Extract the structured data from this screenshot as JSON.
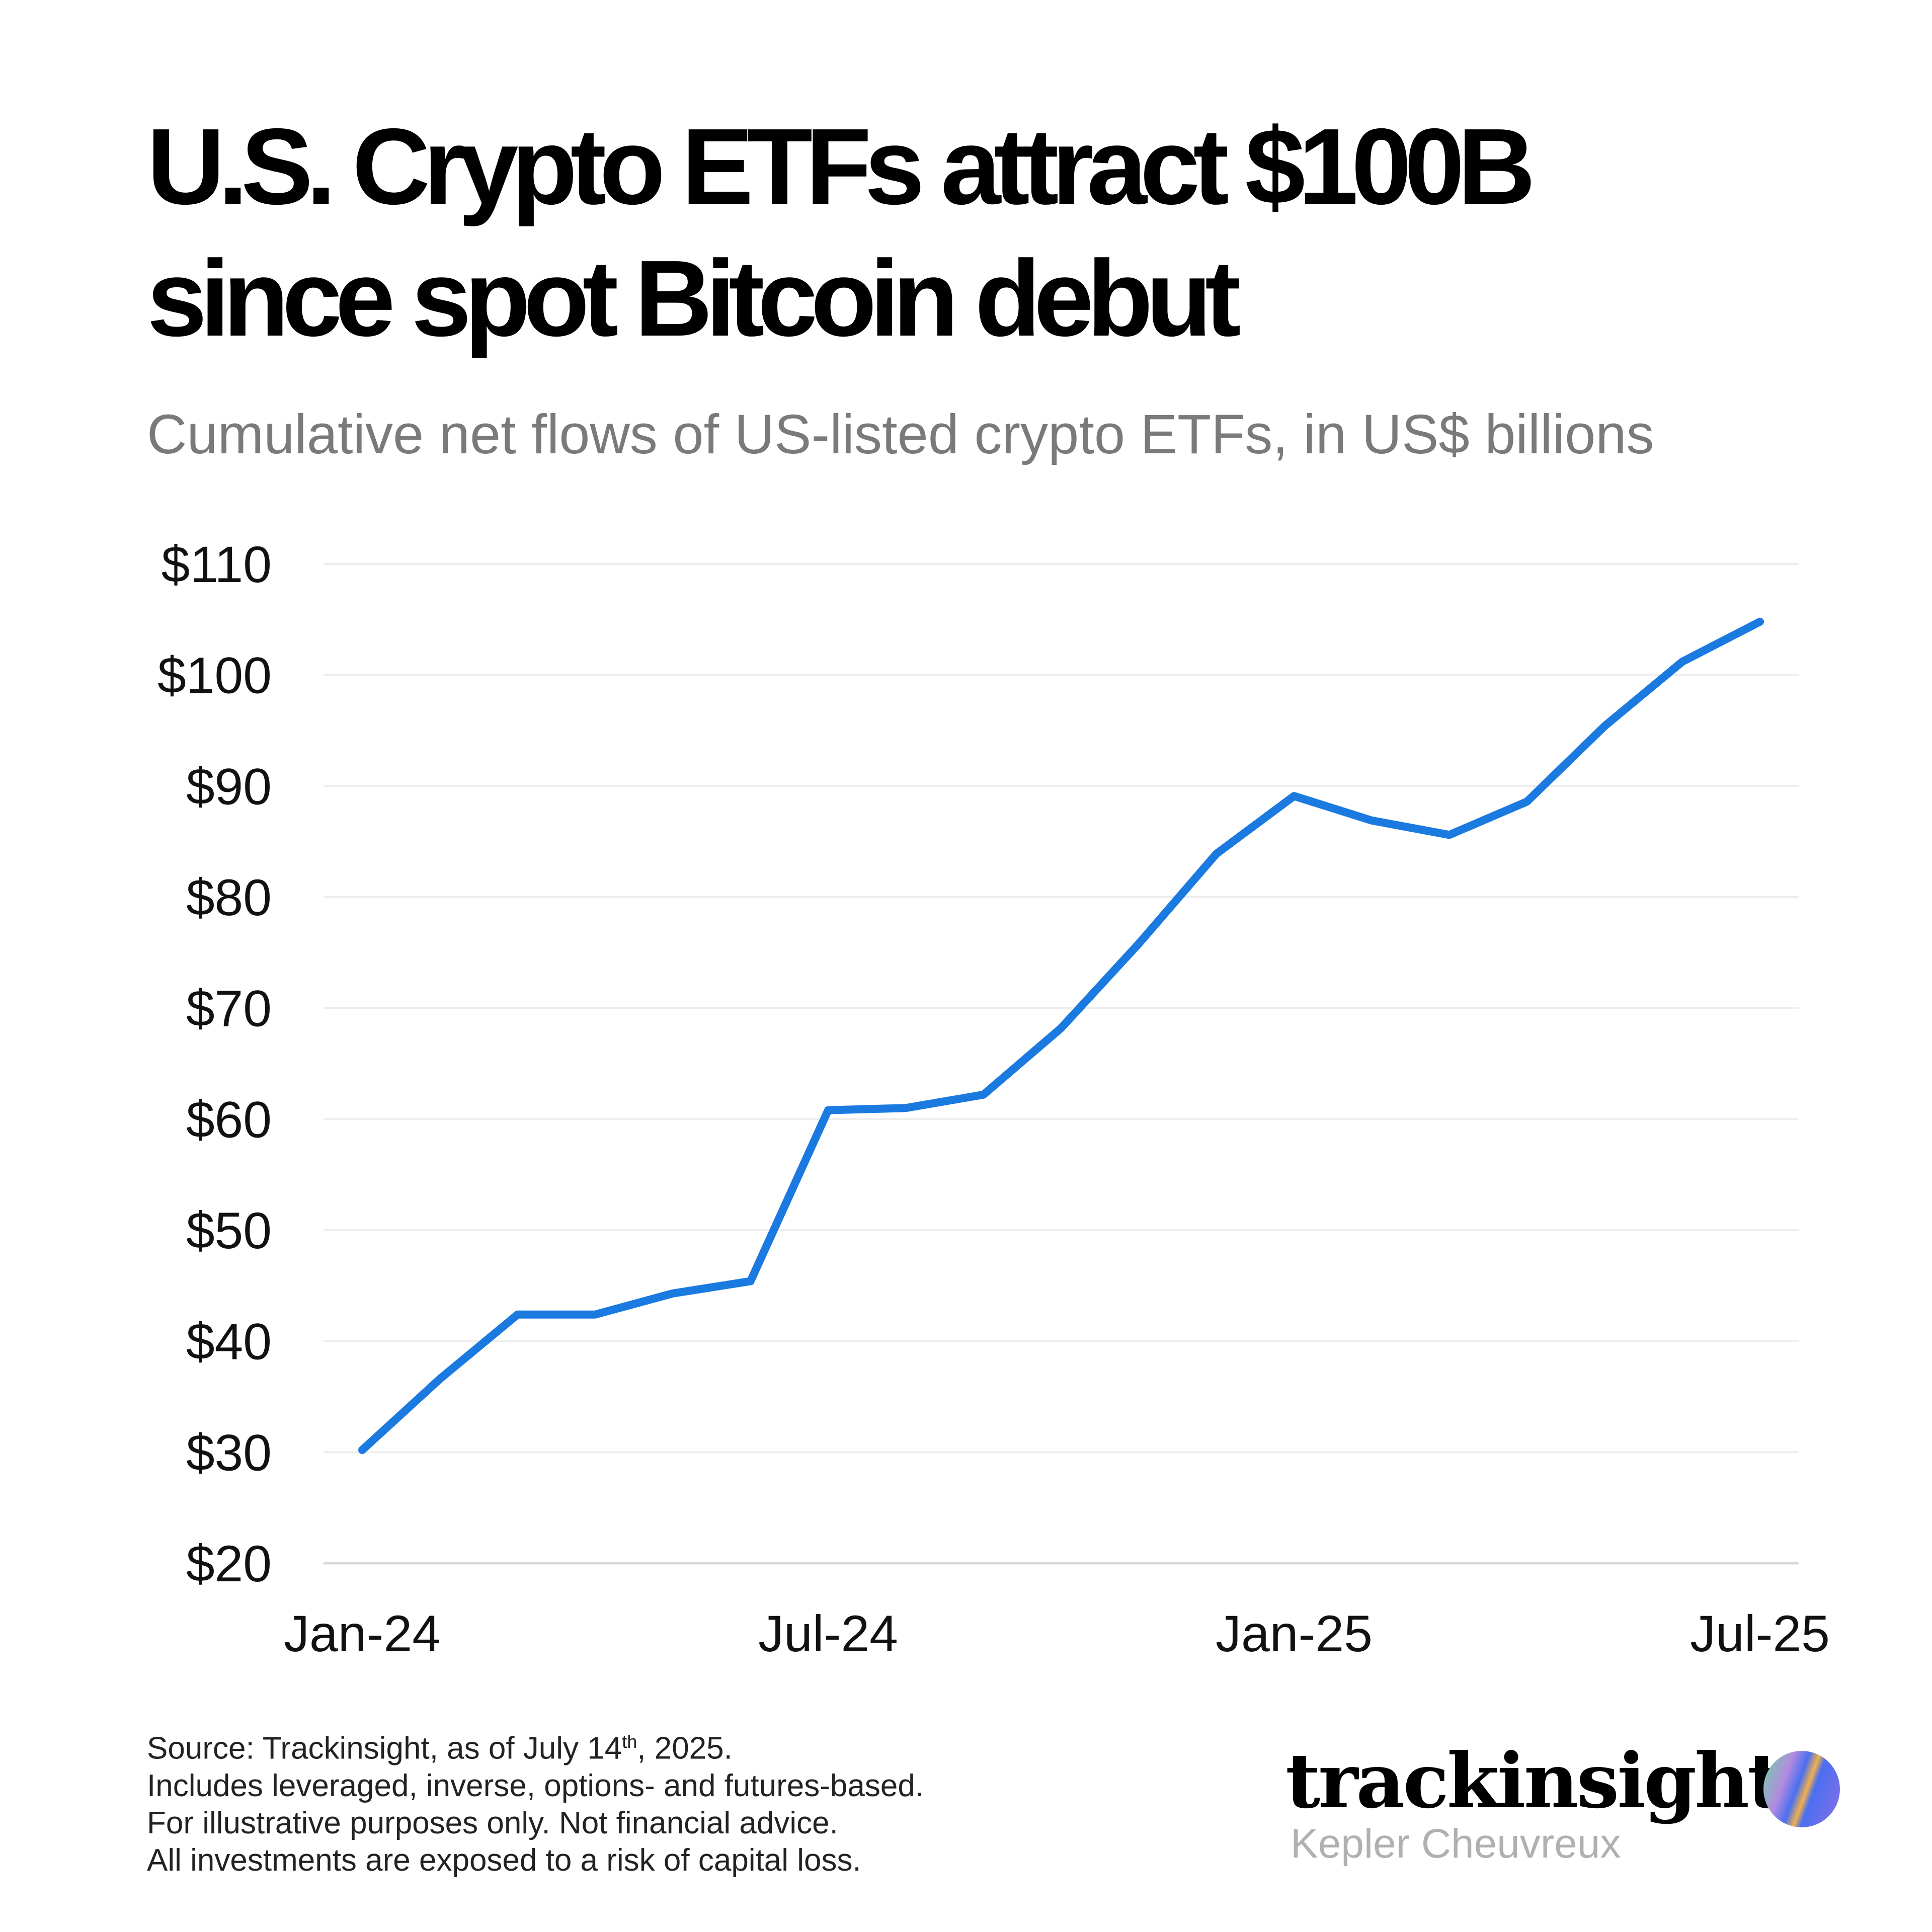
{
  "title_lines": [
    "U.S. Crypto ETFs attract $100B",
    "since spot Bitcoin debut"
  ],
  "subtitle": "Cumulative net flows of US-listed crypto ETFs, in US$ billions",
  "footer": {
    "source_prefix": "Source: Trackinsight, as of July 14",
    "source_sup": "th",
    "source_suffix": ", 2025.",
    "lines": [
      "Includes leveraged, inverse, options- and futures-based.",
      "For illustrative purposes only. Not financial advice.",
      "All investments are exposed to a risk of capital loss."
    ]
  },
  "logo": {
    "name": "trackinsight",
    "sub": "Kepler Cheuvreux"
  },
  "chart_data": {
    "type": "line",
    "title": "U.S. Crypto ETFs attract $100B since spot Bitcoin debut",
    "subtitle": "Cumulative net flows of US-listed crypto ETFs, in US$ billions",
    "x": [
      "2024-01",
      "2024-02",
      "2024-03",
      "2024-04",
      "2024-05",
      "2024-06",
      "2024-07",
      "2024-08",
      "2024-09",
      "2024-10",
      "2024-11",
      "2024-12",
      "2025-01",
      "2025-02",
      "2025-03",
      "2025-04",
      "2025-05",
      "2025-06",
      "2025-07"
    ],
    "series": [
      {
        "values": [
          30.2,
          36.6,
          42.4,
          42.4,
          44.3,
          45.4,
          60.8,
          61.0,
          62.2,
          68.2,
          75.8,
          83.9,
          89.1,
          86.9,
          85.6,
          88.6,
          95.4,
          101.2,
          104.8
        ],
        "color": "#1a7ae0"
      }
    ],
    "ylim": [
      20,
      110
    ],
    "yticks": [
      20,
      30,
      40,
      50,
      60,
      70,
      80,
      90,
      100,
      110
    ],
    "ytick_labels": [
      "$20",
      "$30",
      "$40",
      "$50",
      "$60",
      "$70",
      "$80",
      "$90",
      "$100",
      "$110"
    ],
    "xtick_labels": [
      {
        "label": "Jan-24",
        "index": 0
      },
      {
        "label": "Jul-24",
        "index": 6
      },
      {
        "label": "Jan-25",
        "index": 12
      },
      {
        "label": "Jul-25",
        "index": 18
      }
    ],
    "grid": true,
    "legend": "none",
    "xlabel": "",
    "ylabel": ""
  }
}
